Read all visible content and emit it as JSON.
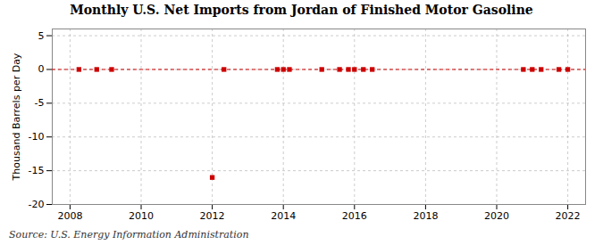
{
  "chart_data": {
    "type": "scatter",
    "title": "Monthly U.S. Net Imports from Jordan of Finished Motor Gasoline",
    "ylabel": "Thousand Barrels per Day",
    "source": "Source: U.S. Energy Information Administration",
    "x": [
      2008.25,
      2008.75,
      2009.17,
      2012.0,
      2012.33,
      2013.83,
      2014.0,
      2014.17,
      2015.08,
      2015.58,
      2015.83,
      2016.0,
      2016.25,
      2016.5,
      2020.75,
      2021.0,
      2021.25,
      2021.75,
      2022.0
    ],
    "values": [
      0,
      0,
      0,
      -16.0,
      0,
      0,
      0,
      0,
      0,
      0,
      0,
      0,
      0,
      0,
      0,
      0,
      0,
      0,
      0
    ],
    "color": "#cc0000",
    "marker": "square",
    "reference_line": {
      "y": 0,
      "color": "#cc0000",
      "line_style": "dashed"
    },
    "xlim": [
      2007.5,
      2022.5
    ],
    "ylim": [
      -20,
      6
    ],
    "xticks": [
      2008,
      2010,
      2012,
      2014,
      2016,
      2018,
      2020,
      2022
    ],
    "yticks": [
      5,
      0,
      -5,
      -10,
      -15,
      -20
    ],
    "grid": true
  }
}
